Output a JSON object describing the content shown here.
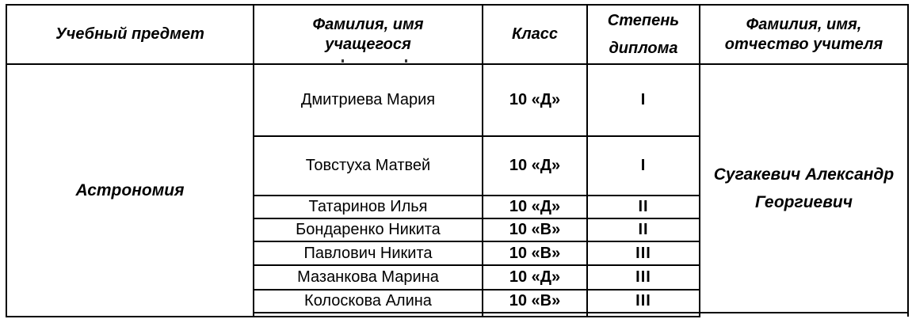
{
  "table": {
    "headers": {
      "subject": "Учебный предмет",
      "student": "Фамилия, имя\nучащегося",
      "class": "Класс",
      "degree": "Степень\nдиплома",
      "teacher": "Фамилия, имя,\nотчество учителя"
    },
    "subject": "Астрономия",
    "teacher": "Сугакевич Александр\nГеоргиевич",
    "rows": [
      {
        "student": "Дмитриева Мария",
        "class": "10 «Д»",
        "degree": "I"
      },
      {
        "student": "Товстуха Матвей",
        "class": "10 «Д»",
        "degree": "I"
      },
      {
        "student": "Татаринов Илья",
        "class": "10 «Д»",
        "degree": "II"
      },
      {
        "student": "Бондаренко Никита",
        "class": "10 «В»",
        "degree": "II"
      },
      {
        "student": "Павлович Никита",
        "class": "10 «В»",
        "degree": "III"
      },
      {
        "student": "Мазанкова Марина",
        "class": "10 «Д»",
        "degree": "III"
      },
      {
        "student": "Колоскова Алина",
        "class": "10 «В»",
        "degree": "III"
      }
    ],
    "colors": {
      "text": "#000000",
      "border": "#000000",
      "background": "#ffffff"
    }
  }
}
